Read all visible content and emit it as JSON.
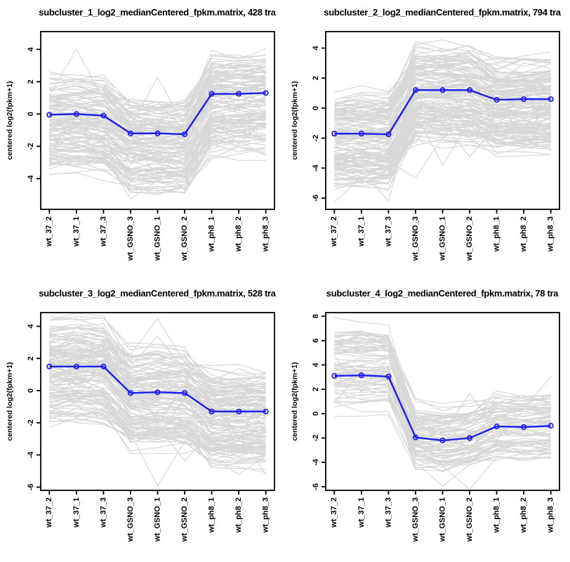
{
  "page": {
    "background": "#ffffff"
  },
  "colors": {
    "mean_line": "#2222ee",
    "gray_line": "#d8d8d8",
    "axis": "#000000",
    "text": "#000000"
  },
  "ylabel": "centered log2(fpkm+1)",
  "samples": [
    "wt_37_2",
    "wt_37_1",
    "wt_37_3",
    "wt_GSNO_3",
    "wt_GSNO_1",
    "wt_GSNO_2",
    "wt_ph8_1",
    "wt_ph8_2",
    "wt_ph8_3"
  ],
  "chart_data": [
    {
      "type": "line",
      "name": "subcluster_1",
      "title": "subcluster_1_log2_medianCentered_fpkm.matrix, 428 tra",
      "transcript_count": 428,
      "x_categories": [
        "wt_37_2",
        "wt_37_1",
        "wt_37_3",
        "wt_GSNO_3",
        "wt_GSNO_1",
        "wt_GSNO_2",
        "wt_ph8_1",
        "wt_ph8_2",
        "wt_ph8_3"
      ],
      "mean_series": [
        -0.05,
        0.0,
        -0.1,
        -1.2,
        -1.2,
        -1.25,
        1.25,
        1.25,
        1.3
      ],
      "ylim": [
        -5.9,
        5.1
      ],
      "yticks": [
        4,
        2,
        0,
        -2,
        -4
      ],
      "grid": false,
      "gray_lines": {
        "count": 130,
        "seed": 101,
        "offset_range": [
          -3.3,
          2.0
        ],
        "amp_range": [
          0.7,
          1.45
        ],
        "jitter": 0.4,
        "spike_prob": 0.1
      }
    },
    {
      "type": "line",
      "name": "subcluster_2",
      "title": "subcluster_2_log2_medianCentered_fpkm.matrix, 794 tra",
      "transcript_count": 794,
      "x_categories": [
        "wt_37_2",
        "wt_37_1",
        "wt_37_3",
        "wt_GSNO_3",
        "wt_GSNO_1",
        "wt_GSNO_2",
        "wt_ph8_1",
        "wt_ph8_2",
        "wt_ph8_3"
      ],
      "mean_series": [
        -1.7,
        -1.7,
        -1.75,
        1.2,
        1.2,
        1.2,
        0.55,
        0.6,
        0.6
      ],
      "ylim": [
        -6.75,
        5.1
      ],
      "yticks": [
        4,
        2,
        0,
        -2,
        -4,
        -6
      ],
      "grid": false,
      "gray_lines": {
        "count": 150,
        "seed": 202,
        "offset_range": [
          -2.9,
          2.2
        ],
        "amp_range": [
          0.7,
          1.4
        ],
        "jitter": 0.4,
        "spike_prob": 0.12
      }
    },
    {
      "type": "line",
      "name": "subcluster_3",
      "title": "subcluster_3_log2_medianCentered_fpkm.matrix, 528 tra",
      "transcript_count": 528,
      "x_categories": [
        "wt_37_2",
        "wt_37_1",
        "wt_37_3",
        "wt_GSNO_3",
        "wt_GSNO_1",
        "wt_GSNO_2",
        "wt_ph8_1",
        "wt_ph8_2",
        "wt_ph8_3"
      ],
      "mean_series": [
        1.5,
        1.5,
        1.5,
        -0.15,
        -0.1,
        -0.15,
        -1.3,
        -1.3,
        -1.3
      ],
      "ylim": [
        -6.2,
        4.85
      ],
      "yticks": [
        4,
        2,
        0,
        -2,
        -4,
        -6
      ],
      "grid": false,
      "gray_lines": {
        "count": 140,
        "seed": 303,
        "offset_range": [
          -3.0,
          2.4
        ],
        "amp_range": [
          0.7,
          1.4
        ],
        "jitter": 0.4,
        "spike_prob": 0.1
      }
    },
    {
      "type": "line",
      "name": "subcluster_4",
      "title": "subcluster_4_log2_medianCentered_fpkm.matrix, 78 tra",
      "transcript_count": 78,
      "x_categories": [
        "wt_37_2",
        "wt_37_1",
        "wt_37_3",
        "wt_GSNO_3",
        "wt_GSNO_1",
        "wt_GSNO_2",
        "wt_ph8_1",
        "wt_ph8_2",
        "wt_ph8_3"
      ],
      "mean_series": [
        3.1,
        3.15,
        3.05,
        -1.95,
        -2.2,
        -2.0,
        -1.05,
        -1.1,
        -1.0
      ],
      "ylim": [
        -6.3,
        8.3
      ],
      "yticks": [
        8,
        6,
        4,
        2,
        0,
        -2,
        -4,
        -6
      ],
      "grid": false,
      "gray_lines": {
        "count": 78,
        "seed": 404,
        "offset_range": [
          -2.4,
          2.7
        ],
        "amp_range": [
          0.75,
          1.5
        ],
        "jitter": 0.45,
        "spike_prob": 0.16
      }
    }
  ]
}
